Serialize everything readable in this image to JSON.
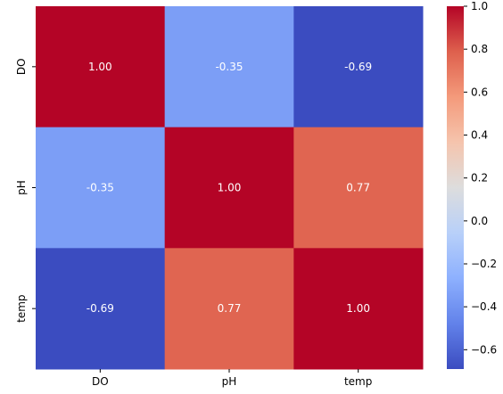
{
  "chart_data": {
    "type": "heatmap",
    "title": "",
    "xlabel": "",
    "ylabel": "",
    "x_categories": [
      "DO",
      "pH",
      "temp"
    ],
    "y_categories": [
      "DO",
      "pH",
      "temp"
    ],
    "values": [
      [
        1.0,
        -0.35,
        -0.69
      ],
      [
        -0.35,
        1.0,
        0.77
      ],
      [
        -0.69,
        0.77,
        1.0
      ]
    ],
    "cell_labels": [
      [
        "1.00",
        "-0.35",
        "-0.69"
      ],
      [
        "-0.35",
        "1.00",
        "0.77"
      ],
      [
        "-0.69",
        "0.77",
        "1.00"
      ]
    ],
    "colormap": "coolwarm",
    "colorbar": {
      "range": [
        -0.69,
        1.0
      ],
      "ticks": [
        1.0,
        0.8,
        0.6,
        0.4,
        0.2,
        0.0,
        -0.2,
        -0.4,
        -0.6
      ],
      "tick_labels": [
        "1.0",
        "0.8",
        "0.6",
        "0.4",
        "0.2",
        "0.0",
        "−0.2",
        "−0.4",
        "−0.6"
      ]
    },
    "grid": false,
    "legend": "colorbar-right"
  }
}
